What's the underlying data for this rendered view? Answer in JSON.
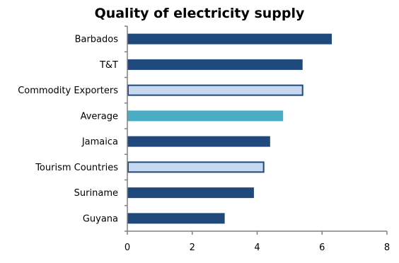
{
  "chart_data": {
    "type": "bar",
    "orientation": "horizontal",
    "title": "Quality of electricity supply",
    "xlabel": "",
    "ylabel": "",
    "xlim": [
      0,
      8
    ],
    "x_ticks": [
      0,
      2,
      4,
      6,
      8
    ],
    "grid": false,
    "legend": "none",
    "categories": [
      "Barbados",
      "T&T",
      "Commodity Exporters",
      "Average",
      "Jamaica",
      "Tourism Countries",
      "Suriname",
      "Guyana"
    ],
    "values": [
      6.3,
      5.4,
      5.4,
      4.8,
      4.4,
      4.2,
      3.9,
      3.0
    ],
    "bar_styles": [
      "country",
      "country",
      "group",
      "average",
      "country",
      "group",
      "country",
      "country"
    ]
  },
  "colors": {
    "country": "#1f497d",
    "group_fill": "#c6d9f1",
    "group_border": "#1f497d",
    "average": "#4bacc6",
    "axis": "#808080"
  }
}
